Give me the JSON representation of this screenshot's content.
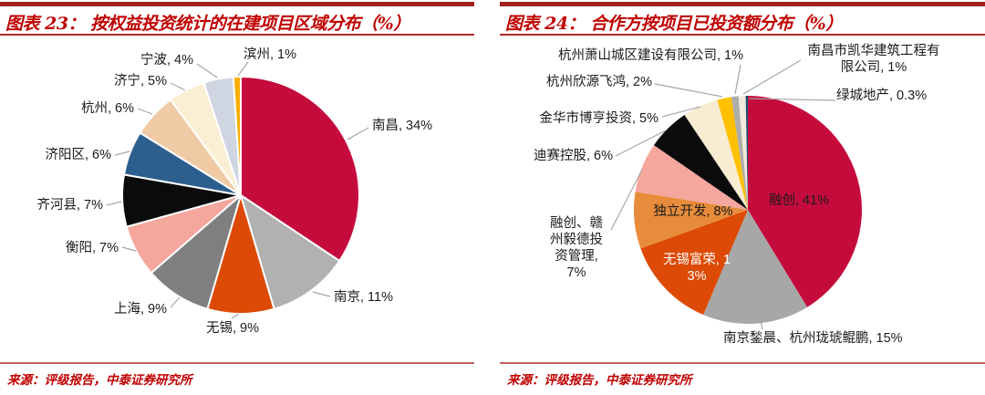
{
  "theme": {
    "title_red": "#C00000",
    "top_bar_red": "#A32020",
    "underline_red": "#B02B2B",
    "footer_line_red": "#BC5F5D",
    "label_color": "#1a1a1a",
    "leader_line_gray": "#A6A6A6"
  },
  "panels": [
    {
      "title": "图表 23： 按权益投资统计的在建项目区域分布（%）",
      "source": "来源：评级报告，中泰证券研究所"
    },
    {
      "title": "图表 24： 合作方按项目已投资额分布（%）",
      "source": "来源：评级报告，中泰证券研究所"
    }
  ],
  "chart_data": [
    {
      "type": "pie",
      "title": "按权益投资统计的在建项目区域分布（%）",
      "unit": "%",
      "start_angle_deg": -90,
      "direction": "clockwise",
      "legend": "none",
      "slices": [
        {
          "label": "南昌",
          "value": 34,
          "color": "#C50B3C"
        },
        {
          "label": "南京",
          "value": 11,
          "color": "#B1B1B1"
        },
        {
          "label": "无锡",
          "value": 9,
          "color": "#DC4A05"
        },
        {
          "label": "上海",
          "value": 9,
          "color": "#7F7F7F"
        },
        {
          "label": "衡阳",
          "value": 7,
          "color": "#F5A69D"
        },
        {
          "label": "齐河县",
          "value": 7,
          "color": "#0B0B0B"
        },
        {
          "label": "济阳区",
          "value": 6,
          "color": "#2D5F8E"
        },
        {
          "label": "杭州",
          "value": 6,
          "color": "#F0CAA4"
        },
        {
          "label": "济宁",
          "value": 5,
          "color": "#FAEFD3"
        },
        {
          "label": "宁波",
          "value": 4,
          "color": "#CFD5E1"
        },
        {
          "label": "滨州",
          "value": 1,
          "color": "#F8AC00"
        }
      ]
    },
    {
      "type": "pie",
      "title": "合作方按项目已投资额分布（%）",
      "unit": "%",
      "start_angle_deg": -90,
      "direction": "clockwise",
      "legend": "none",
      "slices": [
        {
          "label": "融创",
          "value": 41,
          "color": "#C50B3C"
        },
        {
          "label": "南京鍫晨、杭州珑琥鲲鹏",
          "value": 15,
          "color": "#A7A7A7"
        },
        {
          "label": "无锡富荣",
          "value": 13,
          "color": "#DC4A05"
        },
        {
          "label": "独立开发",
          "value": 8,
          "color": "#E78C3A"
        },
        {
          "label": "融创、赣州毅德投资管理",
          "value": 7,
          "color": "#F5A69D"
        },
        {
          "label": "迪赛控股",
          "value": 6,
          "color": "#0B0B0B"
        },
        {
          "label": "金华市博亨投资",
          "value": 5,
          "color": "#F8EDD2"
        },
        {
          "label": "杭州欣源飞鸿",
          "value": 2,
          "color": "#FFC000"
        },
        {
          "label": "杭州萧山城区建设有限公司",
          "value": 1,
          "color": "#ADADAD"
        },
        {
          "label": "南昌市凯华建筑工程有限公司",
          "value": 1,
          "color": "#EFEADA"
        },
        {
          "label": "绿城地产",
          "value": 0.3,
          "color": "#1F4E79"
        }
      ]
    }
  ]
}
